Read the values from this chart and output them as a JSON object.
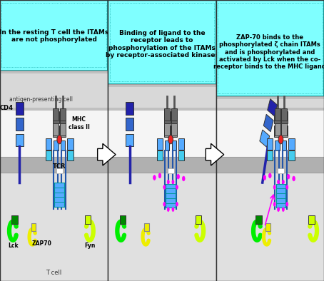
{
  "panel_texts": [
    "In the resting T cell the ITAMs\nare not phosphorylated",
    "Binding of ligand to the\nreceptor leads to\nphosphorylation of the ITAMs\nby receptor-associated kinases",
    "ZAP-70 binds to the\nphosphorylated ζ chain ITAMs\nand is phosphorylated and\nactivated by Lck when the co-\nreceptor binds to the MHC ligand"
  ],
  "cyan_header": "#7fffff",
  "cyan_header_edge": "#009999",
  "white_bg": "#ffffff",
  "gray_apc": "#c0c0c0",
  "gray_apc_dark": "#a0a0a0",
  "gray_mem": "#b0b0b0",
  "tcell_bg": "#e8e8e8",
  "blue_dark": "#2222aa",
  "blue_med": "#3366cc",
  "blue_light": "#55aaff",
  "cyan_light": "#44ccee",
  "gray_prot_dark": "#666666",
  "gray_prot_light": "#999999",
  "green_bright": "#00ee00",
  "green_dark": "#008800",
  "yellow": "#eeee00",
  "yellow_green": "#ccff00",
  "red": "#ee2222",
  "magenta": "#ff00ff",
  "panel_edge": "#333333"
}
